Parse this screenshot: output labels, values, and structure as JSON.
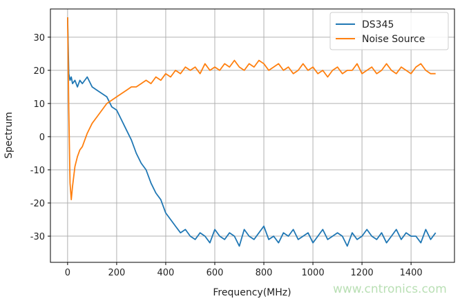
{
  "chart_data": {
    "type": "line",
    "title": "",
    "xlabel": "Frequency(MHz)",
    "ylabel": "Spectrum",
    "xlim": [
      -70,
      1577
    ],
    "ylim": [
      -37.9,
      38.5
    ],
    "xticks": [
      0,
      200,
      400,
      600,
      800,
      1000,
      1200,
      1400
    ],
    "yticks": [
      -30,
      -20,
      -10,
      0,
      10,
      20,
      30
    ],
    "grid": true,
    "legend": "top-right",
    "x": [
      0,
      5,
      10,
      15,
      20,
      30,
      40,
      50,
      60,
      80,
      100,
      120,
      140,
      160,
      180,
      200,
      220,
      240,
      260,
      280,
      300,
      320,
      340,
      360,
      380,
      400,
      420,
      440,
      460,
      480,
      500,
      520,
      540,
      560,
      580,
      600,
      620,
      640,
      660,
      680,
      700,
      720,
      740,
      760,
      780,
      800,
      820,
      840,
      860,
      880,
      900,
      920,
      940,
      960,
      980,
      1000,
      1020,
      1040,
      1060,
      1080,
      1100,
      1120,
      1140,
      1160,
      1180,
      1200,
      1220,
      1240,
      1260,
      1280,
      1300,
      1320,
      1340,
      1360,
      1380,
      1400,
      1420,
      1440,
      1460,
      1480,
      1500
    ],
    "series": [
      {
        "name": "DS345",
        "color": "#1f77b4",
        "values": [
          36,
          19,
          17,
          18,
          16,
          17,
          15,
          17,
          16,
          18,
          15,
          14,
          13,
          12,
          9,
          8,
          5,
          2,
          -1,
          -5,
          -8,
          -10,
          -14,
          -17,
          -19,
          -23,
          -25,
          -27,
          -29,
          -28,
          -30,
          -31,
          -29,
          -30,
          -32,
          -28,
          -30,
          -31,
          -29,
          -30,
          -33,
          -28,
          -30,
          -31,
          -29,
          -27,
          -31,
          -30,
          -32,
          -29,
          -30,
          -28,
          -31,
          -30,
          -29,
          -32,
          -30,
          -28,
          -31,
          -30,
          -29,
          -30,
          -33,
          -29,
          -31,
          -30,
          -28,
          -30,
          -31,
          -29,
          -32,
          -30,
          -28,
          -31,
          -29,
          -30,
          -30,
          -32,
          -28,
          -31,
          -29
        ]
      },
      {
        "name": "Noise Source",
        "color": "#ff7f0e",
        "values": [
          36,
          8,
          -14,
          -19,
          -15,
          -9,
          -6,
          -4,
          -3,
          1,
          4,
          6,
          8,
          10,
          11,
          12,
          13,
          14,
          15,
          15,
          16,
          17,
          16,
          18,
          17,
          19,
          18,
          20,
          19,
          21,
          20,
          21,
          19,
          22,
          20,
          21,
          20,
          22,
          21,
          23,
          21,
          20,
          22,
          21,
          23,
          22,
          20,
          21,
          22,
          20,
          21,
          19,
          20,
          22,
          20,
          21,
          19,
          20,
          18,
          20,
          21,
          19,
          20,
          20,
          22,
          19,
          20,
          21,
          19,
          20,
          22,
          20,
          19,
          21,
          20,
          19,
          21,
          22,
          20,
          19,
          19
        ]
      }
    ]
  },
  "watermark": "www.cntronics.com"
}
